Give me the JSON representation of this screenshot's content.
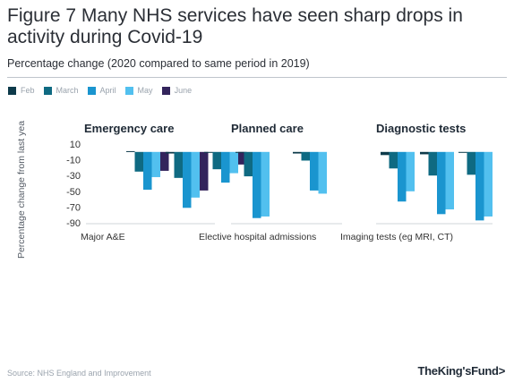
{
  "header": {
    "title": "Figure 7 Many NHS services have seen sharp drops in activity during Covid-19",
    "subtitle": "Percentage change (2020 compared to same period in 2019)"
  },
  "footer": {
    "source": "Source: NHS England and Improvement",
    "logo": "TheKing'sFund>"
  },
  "colors": {
    "Feb": "#0d3a4a",
    "March": "#0f6a82",
    "April": "#1a95cf",
    "May": "#52c0ef",
    "June": "#33245c"
  },
  "chart_data": {
    "type": "bar",
    "ylabel": "Percentage change from last yea",
    "ylim": [
      -90,
      10
    ],
    "yticks": [
      10,
      -10,
      -30,
      -50,
      -70,
      -90
    ],
    "series_names": [
      "Feb",
      "March",
      "April",
      "May",
      "June"
    ],
    "panels": [
      {
        "title": "Emergency care",
        "xlabel": "Major A&E",
        "groups": [
          [
            1,
            -25,
            -48,
            -32,
            -24
          ],
          [
            -2,
            -33,
            -71,
            -58,
            -49
          ],
          [
            -1,
            -22,
            -39,
            -27,
            -16
          ]
        ]
      },
      {
        "title": "Planned care",
        "xlabel": "Elective hospital admissions",
        "groups": [
          [
            -1,
            -31,
            -84,
            -82
          ],
          [
            -2,
            -11,
            -49,
            -53
          ]
        ]
      },
      {
        "title": "Diagnostic tests",
        "xlabel": "Imaging tests (eg MRI, CT)",
        "groups": [
          [
            -4,
            -21,
            -63,
            -50
          ],
          [
            -3,
            -30,
            -79,
            -73
          ],
          [
            -1,
            -29,
            -87,
            -82
          ]
        ]
      }
    ]
  }
}
